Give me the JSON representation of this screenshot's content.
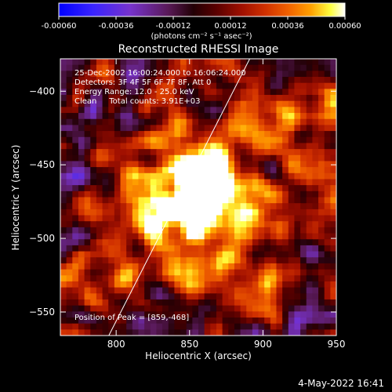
{
  "chart_data": {
    "type": "heatmap",
    "title": "Reconstructed RHESSI Image",
    "xlabel": "Heliocentric X (arcsec)",
    "ylabel": "Heliocentric Y (arcsec)",
    "xlim": [
      762,
      950
    ],
    "ylim": [
      -566,
      -378
    ],
    "x_ticks": [
      800,
      850,
      900,
      950
    ],
    "y_ticks": [
      -550,
      -500,
      -450,
      -400
    ],
    "colorbar": {
      "range": [
        -0.0006,
        0.0006
      ],
      "tick_values": [
        -0.0006,
        -0.00036,
        -0.00012,
        0.00012,
        0.00036,
        0.0006
      ],
      "tick_labels": [
        "-0.00060",
        "-0.00036",
        "-0.00012",
        "0.00012",
        "0.00036",
        "0.00060"
      ],
      "units_text": "(photons cm⁻² s⁻¹ asec⁻²)"
    },
    "annotation_lines": [
      "25-Dec-2002 16:00:24.000 to 16:06:24.000",
      "Detectors: 3F 4F 5F 6F 7F 8F, Att 0",
      "Energy Range: 12.0 - 25.0 keV",
      "Clean     Total counts: 3.91E+03"
    ],
    "peak_label": "Position of Peak = [859,-468]",
    "peak": [
      859,
      -468
    ],
    "secondary_source": [
      910,
      -528
    ],
    "limb_line": [
      [
        795,
        -566
      ],
      [
        891,
        -378
      ]
    ],
    "colors": {
      "background": "#000000",
      "limb": "#ffffff",
      "colormap": [
        "#0000ff",
        "#3a24ff",
        "#7733cc",
        "#5a1a5a",
        "#220005",
        "#5a0000",
        "#a01000",
        "#d03000",
        "#f06000",
        "#ffa000",
        "#ffff40",
        "#ffffff"
      ]
    }
  },
  "footer": {
    "date": "4-May-2022 16:41"
  }
}
